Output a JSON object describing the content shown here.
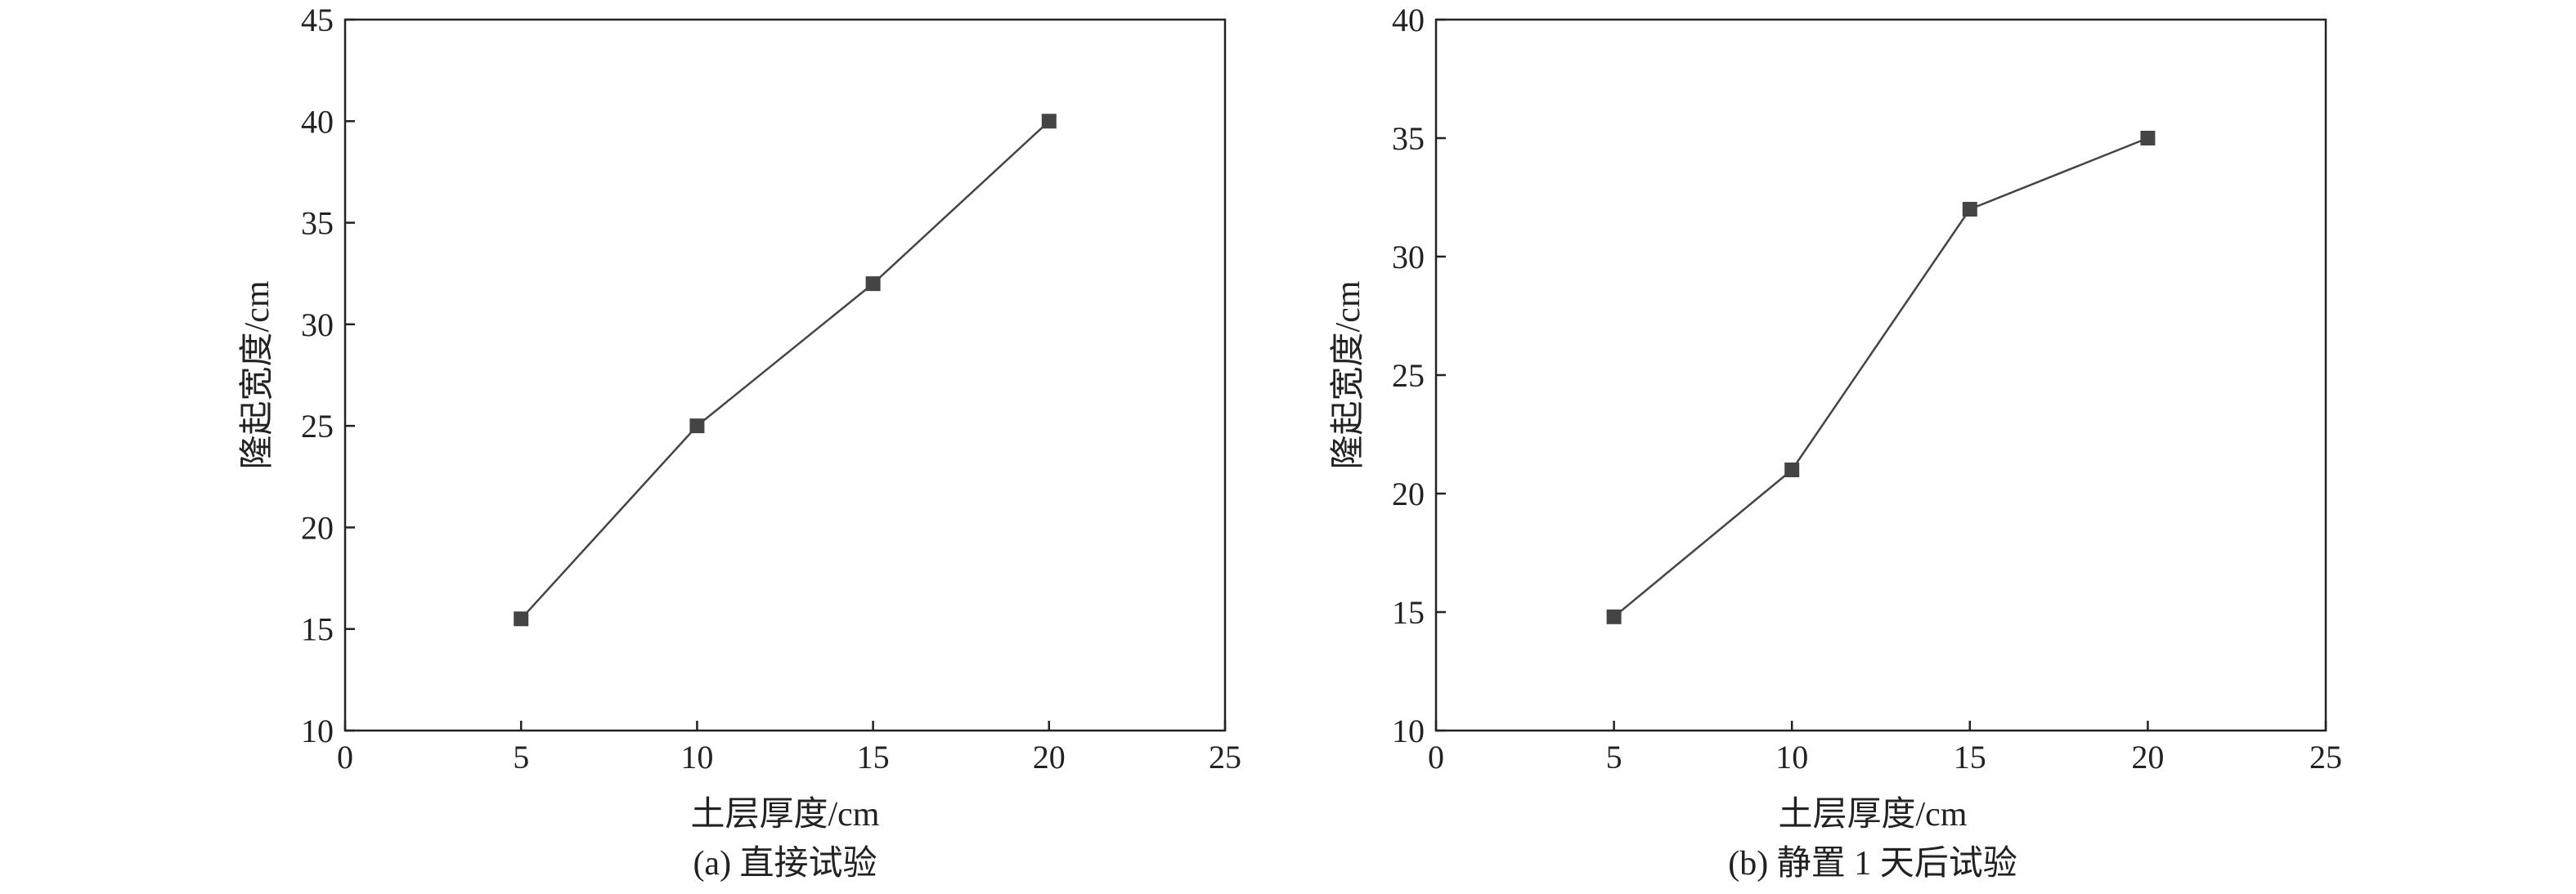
{
  "chart_data": [
    {
      "type": "line",
      "caption": "(a) 直接试验",
      "xlabel": "土层厚度/cm",
      "ylabel": "隆起宽度/cm",
      "xlim": [
        0,
        25
      ],
      "ylim": [
        10,
        45
      ],
      "xticks": [
        0,
        5,
        10,
        15,
        20,
        25
      ],
      "yticks": [
        10,
        15,
        20,
        25,
        30,
        35,
        40,
        45
      ],
      "grid": false,
      "series": [
        {
          "x": [
            5,
            10,
            15,
            20
          ],
          "values": [
            15.5,
            25,
            32,
            40
          ],
          "color": "#444444",
          "marker": "square"
        }
      ]
    },
    {
      "type": "line",
      "caption": "(b) 静置 1 天后试验",
      "xlabel": "土层厚度/cm",
      "ylabel": "隆起宽度/cm",
      "xlim": [
        0,
        25
      ],
      "ylim": [
        10,
        40
      ],
      "xticks": [
        0,
        5,
        10,
        15,
        20,
        25
      ],
      "yticks": [
        10,
        15,
        20,
        25,
        30,
        35,
        40
      ],
      "grid": false,
      "series": [
        {
          "x": [
            5,
            10,
            15,
            20
          ],
          "values": [
            14.8,
            21,
            32,
            35
          ],
          "color": "#444444",
          "marker": "square"
        }
      ]
    }
  ]
}
